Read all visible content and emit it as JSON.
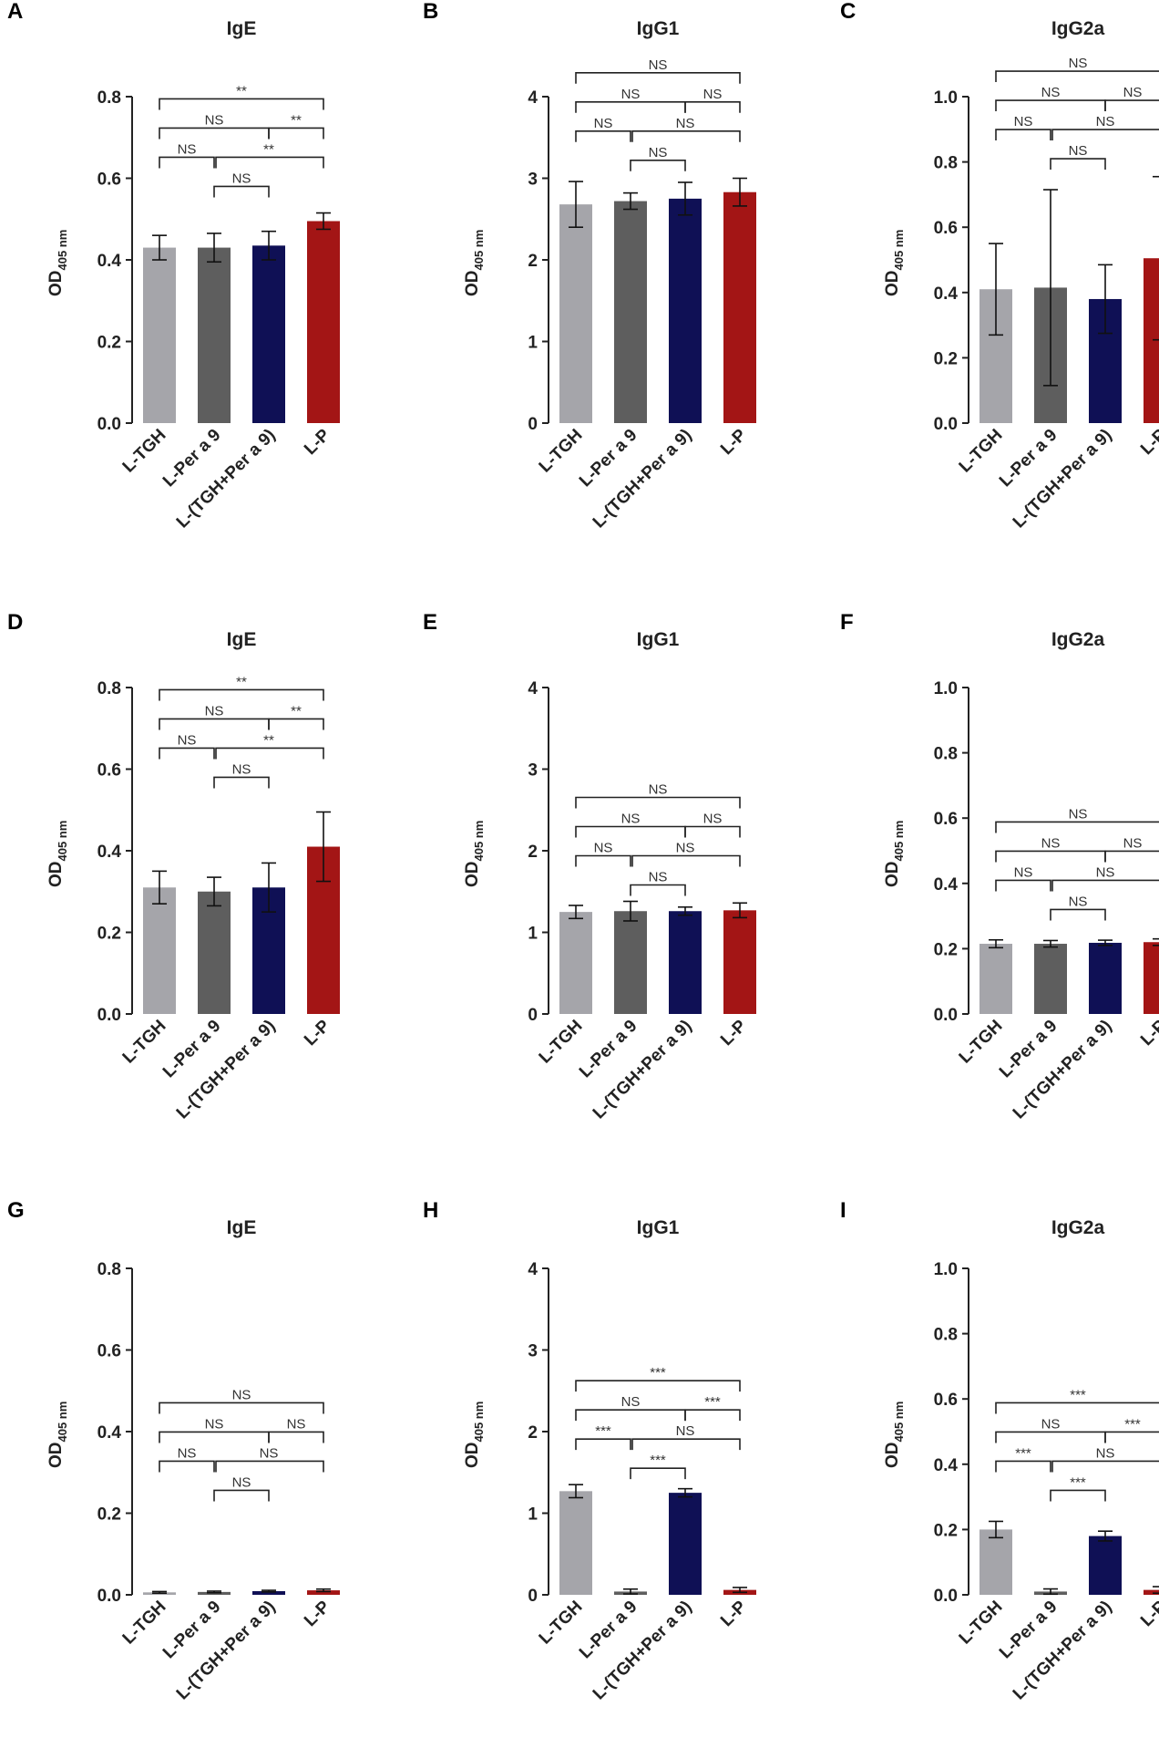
{
  "figure": {
    "categories": [
      "L-TGH",
      "L-Per a 9",
      "L-(TGH+Per a 9)",
      "L-P"
    ],
    "bar_colors": [
      "#a5a5aa",
      "#5e5e5e",
      "#0f1055",
      "#a31515"
    ],
    "ylabel": {
      "main": "OD",
      "sub": "405 nm"
    }
  },
  "chart_data": [
    {
      "panel": "A",
      "title": "IgE",
      "type": "bar",
      "ylim": [
        0,
        0.8
      ],
      "yticks": [
        "0.0",
        "0.2",
        "0.4",
        "0.6",
        "0.8"
      ],
      "values": [
        0.43,
        0.43,
        0.435,
        0.495
      ],
      "errors": [
        0.03,
        0.035,
        0.035,
        0.02
      ],
      "comparisons": [
        {
          "from": 1,
          "to": 2,
          "label": "NS"
        },
        {
          "from": 0,
          "to": 1,
          "label": "NS"
        },
        {
          "from": 1,
          "to": 3,
          "label": "**"
        },
        {
          "from": 0,
          "to": 2,
          "label": "NS"
        },
        {
          "from": 2,
          "to": 3,
          "label": "**"
        },
        {
          "from": 0,
          "to": 3,
          "label": "**"
        }
      ]
    },
    {
      "panel": "B",
      "title": "IgG1",
      "type": "bar",
      "ylim": [
        0,
        4
      ],
      "yticks": [
        "0",
        "1",
        "2",
        "3",
        "4"
      ],
      "values": [
        2.68,
        2.72,
        2.75,
        2.83
      ],
      "errors": [
        0.28,
        0.1,
        0.2,
        0.17
      ],
      "comparisons": [
        {
          "from": 1,
          "to": 2,
          "label": "NS"
        },
        {
          "from": 0,
          "to": 1,
          "label": "NS"
        },
        {
          "from": 1,
          "to": 3,
          "label": "NS"
        },
        {
          "from": 0,
          "to": 2,
          "label": "NS"
        },
        {
          "from": 2,
          "to": 3,
          "label": "NS"
        },
        {
          "from": 0,
          "to": 3,
          "label": "NS"
        }
      ]
    },
    {
      "panel": "C",
      "title": "IgG2a",
      "type": "bar",
      "ylim": [
        0,
        1.0
      ],
      "yticks": [
        "0.0",
        "0.2",
        "0.4",
        "0.6",
        "0.8",
        "1.0"
      ],
      "values": [
        0.41,
        0.415,
        0.38,
        0.505
      ],
      "errors": [
        0.14,
        0.3,
        0.105,
        0.25
      ],
      "comparisons": [
        {
          "from": 1,
          "to": 2,
          "label": "NS"
        },
        {
          "from": 0,
          "to": 1,
          "label": "NS"
        },
        {
          "from": 1,
          "to": 3,
          "label": "NS"
        },
        {
          "from": 0,
          "to": 2,
          "label": "NS"
        },
        {
          "from": 2,
          "to": 3,
          "label": "NS"
        },
        {
          "from": 0,
          "to": 3,
          "label": "NS"
        }
      ]
    },
    {
      "panel": "D",
      "title": "IgE",
      "type": "bar",
      "ylim": [
        0,
        0.8
      ],
      "yticks": [
        "0.0",
        "0.2",
        "0.4",
        "0.6",
        "0.8"
      ],
      "values": [
        0.31,
        0.3,
        0.31,
        0.41
      ],
      "errors": [
        0.04,
        0.035,
        0.06,
        0.085
      ],
      "comparisons": [
        {
          "from": 1,
          "to": 2,
          "label": "NS"
        },
        {
          "from": 0,
          "to": 1,
          "label": "NS"
        },
        {
          "from": 1,
          "to": 3,
          "label": "**"
        },
        {
          "from": 0,
          "to": 2,
          "label": "NS"
        },
        {
          "from": 2,
          "to": 3,
          "label": "**"
        },
        {
          "from": 0,
          "to": 3,
          "label": "**"
        }
      ]
    },
    {
      "panel": "E",
      "title": "IgG1",
      "type": "bar",
      "ylim": [
        0,
        4
      ],
      "yticks": [
        "0",
        "1",
        "2",
        "3",
        "4"
      ],
      "values": [
        1.25,
        1.26,
        1.26,
        1.27
      ],
      "errors": [
        0.08,
        0.12,
        0.05,
        0.09
      ],
      "comparisons": [
        {
          "from": 1,
          "to": 2,
          "label": "NS"
        },
        {
          "from": 0,
          "to": 1,
          "label": "NS"
        },
        {
          "from": 1,
          "to": 3,
          "label": "NS"
        },
        {
          "from": 0,
          "to": 2,
          "label": "NS"
        },
        {
          "from": 2,
          "to": 3,
          "label": "NS"
        },
        {
          "from": 0,
          "to": 3,
          "label": "NS"
        }
      ]
    },
    {
      "panel": "F",
      "title": "IgG2a",
      "type": "bar",
      "ylim": [
        0,
        1.0
      ],
      "yticks": [
        "0.0",
        "0.2",
        "0.4",
        "0.6",
        "0.8",
        "1.0"
      ],
      "values": [
        0.215,
        0.215,
        0.218,
        0.22
      ],
      "errors": [
        0.012,
        0.01,
        0.008,
        0.01
      ],
      "comparisons": [
        {
          "from": 1,
          "to": 2,
          "label": "NS"
        },
        {
          "from": 0,
          "to": 1,
          "label": "NS"
        },
        {
          "from": 1,
          "to": 3,
          "label": "NS"
        },
        {
          "from": 0,
          "to": 2,
          "label": "NS"
        },
        {
          "from": 2,
          "to": 3,
          "label": "NS"
        },
        {
          "from": 0,
          "to": 3,
          "label": "NS"
        }
      ]
    },
    {
      "panel": "G",
      "title": "IgE",
      "type": "bar",
      "ylim": [
        0,
        0.8
      ],
      "yticks": [
        "0.0",
        "0.2",
        "0.4",
        "0.6",
        "0.8"
      ],
      "values": [
        0.006,
        0.007,
        0.009,
        0.011
      ],
      "errors": [
        0.002,
        0.002,
        0.002,
        0.003
      ],
      "comparisons": [
        {
          "from": 1,
          "to": 2,
          "label": "NS"
        },
        {
          "from": 0,
          "to": 1,
          "label": "NS"
        },
        {
          "from": 1,
          "to": 3,
          "label": "NS"
        },
        {
          "from": 0,
          "to": 2,
          "label": "NS"
        },
        {
          "from": 2,
          "to": 3,
          "label": "NS"
        },
        {
          "from": 0,
          "to": 3,
          "label": "NS"
        }
      ]
    },
    {
      "panel": "H",
      "title": "IgG1",
      "type": "bar",
      "ylim": [
        0,
        4
      ],
      "yticks": [
        "0",
        "1",
        "2",
        "3",
        "4"
      ],
      "values": [
        1.27,
        0.04,
        1.25,
        0.06
      ],
      "errors": [
        0.08,
        0.03,
        0.05,
        0.03
      ],
      "comparisons": [
        {
          "from": 1,
          "to": 2,
          "label": "***"
        },
        {
          "from": 0,
          "to": 1,
          "label": "***"
        },
        {
          "from": 1,
          "to": 3,
          "label": "NS"
        },
        {
          "from": 0,
          "to": 2,
          "label": "NS"
        },
        {
          "from": 2,
          "to": 3,
          "label": "***"
        },
        {
          "from": 0,
          "to": 3,
          "label": "***"
        }
      ]
    },
    {
      "panel": "I",
      "title": "IgG2a",
      "type": "bar",
      "ylim": [
        0,
        1.0
      ],
      "yticks": [
        "0.0",
        "0.2",
        "0.4",
        "0.6",
        "0.8",
        "1.0"
      ],
      "values": [
        0.2,
        0.01,
        0.18,
        0.015
      ],
      "errors": [
        0.025,
        0.008,
        0.015,
        0.01
      ],
      "comparisons": [
        {
          "from": 1,
          "to": 2,
          "label": "***"
        },
        {
          "from": 0,
          "to": 1,
          "label": "***"
        },
        {
          "from": 1,
          "to": 3,
          "label": "NS"
        },
        {
          "from": 0,
          "to": 2,
          "label": "NS"
        },
        {
          "from": 2,
          "to": 3,
          "label": "***"
        },
        {
          "from": 0,
          "to": 3,
          "label": "***"
        }
      ]
    }
  ]
}
